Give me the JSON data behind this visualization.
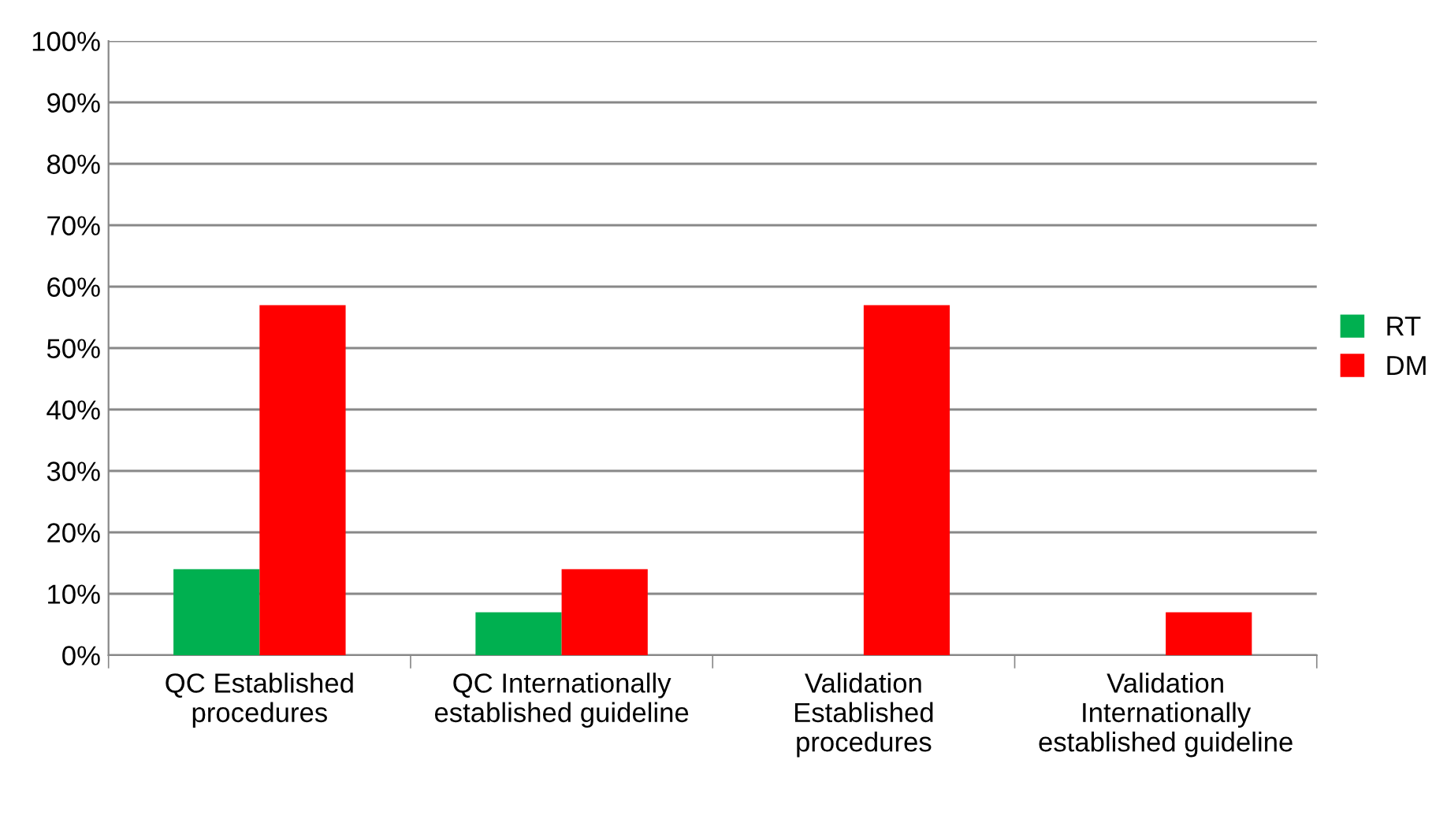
{
  "chart_data": {
    "type": "bar",
    "categories": [
      "QC Established\nprocedures",
      "QC Internationally\nestablished guideline",
      "Validation\nEstablished\nprocedures",
      "Validation\nInternationally\nestablished guideline"
    ],
    "series": [
      {
        "name": "RT",
        "color": "#00b050",
        "values": [
          14,
          7,
          0,
          0
        ]
      },
      {
        "name": "DM",
        "color": "#ff0000",
        "values": [
          57,
          14,
          57,
          7
        ]
      }
    ],
    "ylim": [
      0,
      100
    ],
    "yticks": [
      {
        "value": 0,
        "label": "0%"
      },
      {
        "value": 10,
        "label": "10%"
      },
      {
        "value": 20,
        "label": "20%"
      },
      {
        "value": 30,
        "label": "30%"
      },
      {
        "value": 40,
        "label": "40%"
      },
      {
        "value": 50,
        "label": "50%"
      },
      {
        "value": 60,
        "label": "60%"
      },
      {
        "value": 70,
        "label": "70%"
      },
      {
        "value": 80,
        "label": "80%"
      },
      {
        "value": 90,
        "label": "90%"
      },
      {
        "value": 100,
        "label": "100%"
      }
    ],
    "grid": "y",
    "legend": "right"
  }
}
